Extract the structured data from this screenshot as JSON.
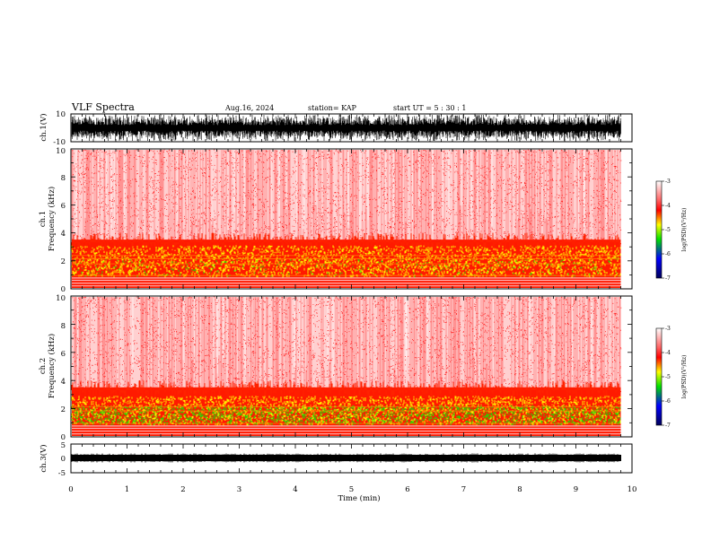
{
  "header": {
    "title": "VLF Spectra",
    "date": "Aug.16, 2024",
    "station": "station= KAP",
    "start": "start  UT =   5  : 30 : 1"
  },
  "chart_data": [
    {
      "type": "line",
      "name": "ch1-waveform",
      "ylabel": "ch.1(V)",
      "ylim": [
        -10,
        10
      ],
      "y_tick_labels": [
        "10",
        "-10"
      ],
      "xlim": [
        0,
        10
      ]
    },
    {
      "type": "heatmap",
      "name": "ch1-spectrogram",
      "ylabel_line1": "ch.1",
      "ylabel_line2": "Frequency (kHz)",
      "ylim": [
        0,
        10
      ],
      "y_tick_labels": [
        "0",
        "2",
        "4",
        "6",
        "8",
        "10"
      ],
      "xlim": [
        0,
        9.8
      ],
      "colorbar": {
        "label": "log(PSD)(V²/Hz)",
        "range": [
          -7,
          -3
        ],
        "tick_labels": [
          "-3",
          "-4",
          "-5",
          "-6",
          "-7"
        ]
      }
    },
    {
      "type": "heatmap",
      "name": "ch2-spectrogram",
      "ylabel_line1": "ch.2",
      "ylabel_line2": "Frequency (kHz)",
      "ylim": [
        0,
        10
      ],
      "y_tick_labels": [
        "0",
        "2",
        "4",
        "6",
        "8",
        "10"
      ],
      "xlim": [
        0,
        9.8
      ],
      "colorbar": {
        "label": "log(PSD)(V²/Hz)",
        "range": [
          -7,
          -3
        ],
        "tick_labels": [
          "-3",
          "-4",
          "-5",
          "-6",
          "-7"
        ]
      }
    },
    {
      "type": "line",
      "name": "ch3-waveform",
      "ylabel": "ch.3(V)",
      "ylim": [
        -5,
        5
      ],
      "y_tick_labels": [
        "5",
        "0",
        "-5"
      ],
      "xlim": [
        0,
        10
      ]
    }
  ],
  "x_axis": {
    "label": "Time (min)",
    "range": [
      0,
      10
    ],
    "tick_labels": [
      "0",
      "1",
      "2",
      "3",
      "4",
      "5",
      "6",
      "7",
      "8",
      "9",
      "10"
    ]
  },
  "colors": {
    "spectrum_low": "#ffffff",
    "spectrum_red": "#ff0000",
    "spectrum_yellow": "#ffff00",
    "spectrum_green": "#00cc00",
    "spectrum_blue": "#0000ff",
    "spectrum_navy": "#00005a"
  }
}
